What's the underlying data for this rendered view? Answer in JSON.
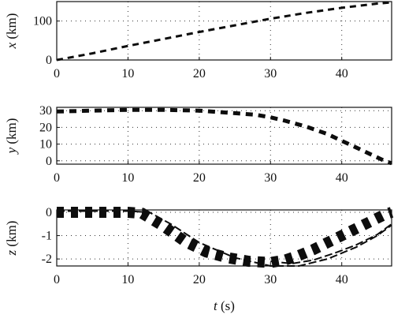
{
  "chart_data": [
    {
      "type": "line",
      "id": "x",
      "ylabel_var": "x",
      "ylabel_unit": "(km)",
      "xlim": [
        0,
        47
      ],
      "ylim": [
        0,
        150
      ],
      "xticks": [
        0,
        10,
        20,
        30,
        40
      ],
      "yticks": [
        0,
        100
      ],
      "grid": true,
      "series": [
        {
          "style": "dashed",
          "x": [
            0,
            5,
            10,
            15,
            20,
            25,
            30,
            35,
            40,
            45,
            47
          ],
          "y": [
            0,
            17,
            36,
            54,
            72,
            89,
            106,
            121,
            134,
            145,
            148
          ]
        }
      ]
    },
    {
      "type": "line",
      "id": "y",
      "ylabel_var": "y",
      "ylabel_unit": "(km)",
      "xlim": [
        0,
        47
      ],
      "ylim": [
        -2,
        32
      ],
      "xticks": [
        0,
        10,
        20,
        30,
        40
      ],
      "yticks": [
        0,
        10,
        20,
        30
      ],
      "grid": true,
      "series": [
        {
          "style": "dashed",
          "x": [
            0,
            5,
            10,
            15,
            20,
            25,
            28,
            30,
            32,
            35,
            38,
            40,
            42,
            44,
            46,
            47
          ],
          "y": [
            29.5,
            30,
            30.5,
            30.5,
            30,
            28.5,
            27.5,
            26,
            24,
            20.5,
            16,
            12,
            8,
            4,
            0,
            -1.5
          ]
        }
      ]
    },
    {
      "type": "line",
      "id": "z",
      "ylabel_var": "z",
      "ylabel_unit": "(km)",
      "xlim": [
        0,
        47
      ],
      "ylim": [
        -2.3,
        0.1
      ],
      "xticks": [
        0,
        10,
        20,
        30,
        40
      ],
      "yticks": [
        0,
        -1,
        -2
      ],
      "grid": true,
      "xlabel_var": "t",
      "xlabel_unit": "(s)",
      "series": [
        {
          "style": "thick-dashed",
          "x": [
            0,
            10,
            12,
            15,
            18,
            21,
            24,
            27,
            30,
            32,
            34,
            36,
            38,
            40,
            42,
            44,
            46,
            47
          ],
          "y": [
            0,
            0,
            -0.05,
            -0.6,
            -1.25,
            -1.7,
            -1.95,
            -2.1,
            -2.15,
            -2.05,
            -1.85,
            -1.6,
            -1.3,
            -1.0,
            -0.7,
            -0.4,
            -0.1,
            0.0
          ]
        },
        {
          "style": "dashed",
          "x": [
            0,
            10,
            13,
            16,
            20,
            25,
            30,
            34,
            38,
            42,
            45,
            47
          ],
          "y": [
            0.05,
            0.05,
            0,
            -0.5,
            -1.3,
            -1.95,
            -2.3,
            -2.3,
            -2.0,
            -1.5,
            -1.0,
            -0.55
          ]
        },
        {
          "style": "dashed",
          "x": [
            30,
            33,
            36,
            39,
            42,
            45,
            47
          ],
          "y": [
            -2.1,
            -2.2,
            -2.05,
            -1.75,
            -1.4,
            -0.95,
            -0.5
          ]
        }
      ]
    }
  ]
}
